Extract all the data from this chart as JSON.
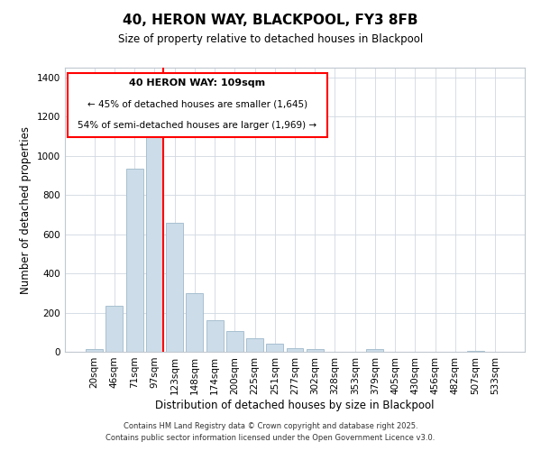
{
  "title": "40, HERON WAY, BLACKPOOL, FY3 8FB",
  "subtitle": "Size of property relative to detached houses in Blackpool",
  "xlabel": "Distribution of detached houses by size in Blackpool",
  "ylabel": "Number of detached properties",
  "bar_labels": [
    "20sqm",
    "46sqm",
    "71sqm",
    "97sqm",
    "123sqm",
    "148sqm",
    "174sqm",
    "200sqm",
    "225sqm",
    "251sqm",
    "277sqm",
    "302sqm",
    "328sqm",
    "353sqm",
    "379sqm",
    "405sqm",
    "430sqm",
    "456sqm",
    "482sqm",
    "507sqm",
    "533sqm"
  ],
  "bar_values": [
    15,
    235,
    935,
    1110,
    660,
    300,
    160,
    105,
    70,
    40,
    20,
    15,
    0,
    0,
    15,
    0,
    0,
    0,
    0,
    5,
    0
  ],
  "bar_color": "#ccdce8",
  "bar_edge_color": "#a8c0d0",
  "vline_x": 3.45,
  "vline_color": "red",
  "ylim": [
    0,
    1450
  ],
  "yticks": [
    0,
    200,
    400,
    600,
    800,
    1000,
    1200,
    1400
  ],
  "annotation_title": "40 HERON WAY: 109sqm",
  "annotation_line1": "← 45% of detached houses are smaller (1,645)",
  "annotation_line2": "54% of semi-detached houses are larger (1,969) →",
  "footer1": "Contains HM Land Registry data © Crown copyright and database right 2025.",
  "footer2": "Contains public sector information licensed under the Open Government Licence v3.0."
}
